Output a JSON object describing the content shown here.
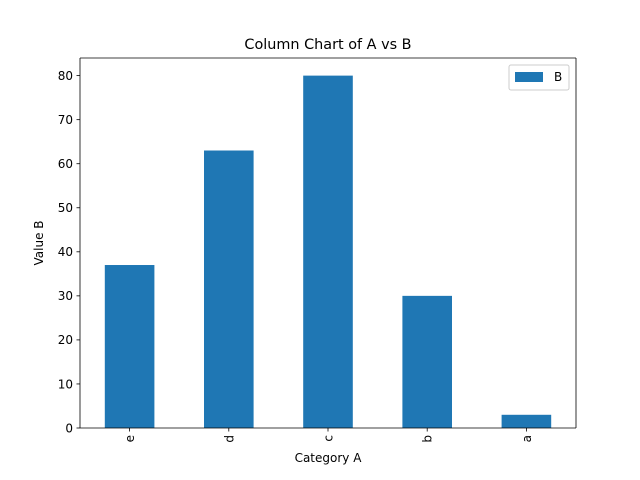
{
  "chart_data": {
    "type": "bar",
    "title": "Column Chart of A vs B",
    "xlabel": "Category A",
    "ylabel": "Value B",
    "categories": [
      "e",
      "d",
      "c",
      "b",
      "a"
    ],
    "series": [
      {
        "name": "B",
        "values": [
          37,
          63,
          80,
          30,
          3
        ],
        "color": "#1f77b4"
      }
    ],
    "ylim": [
      0,
      84
    ],
    "yticks": [
      0,
      10,
      20,
      30,
      40,
      50,
      60,
      70,
      80
    ],
    "grid": false,
    "legend_position": "top-right",
    "x_tick_rotation": "vertical"
  }
}
